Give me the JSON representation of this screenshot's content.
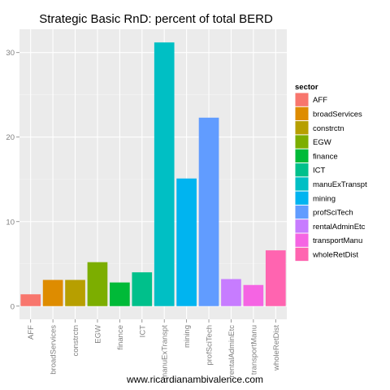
{
  "chart_data": {
    "type": "bar",
    "title": "Strategic Basic RnD: percent of total BERD",
    "xlabel": "",
    "ylabel": "",
    "categories": [
      "AFF",
      "broadServices",
      "constrctn",
      "EGW",
      "finance",
      "ICT",
      "manuExTranspt",
      "mining",
      "profSciTech",
      "rentalAdminEtc",
      "transportManu",
      "wholeRetDist"
    ],
    "values": [
      1.4,
      3.1,
      3.1,
      5.2,
      2.8,
      4.0,
      31.2,
      15.1,
      22.3,
      3.2,
      2.5,
      6.6
    ],
    "colors": [
      "#F8766D",
      "#DE8C00",
      "#B79F00",
      "#7CAE00",
      "#00BA38",
      "#00C08B",
      "#00BFC4",
      "#00B4F0",
      "#619CFF",
      "#C77CFF",
      "#F564E3",
      "#FF64B0"
    ],
    "ylim": [
      -1.56,
      32.76
    ],
    "yticks": [
      0,
      10,
      20,
      30
    ],
    "grid": true,
    "legend": {
      "title": "sector",
      "position": "right",
      "items": [
        "AFF",
        "broadServices",
        "constrctn",
        "EGW",
        "finance",
        "ICT",
        "manuExTranspt",
        "mining",
        "profSciTech",
        "rentalAdminEtc",
        "transportManu",
        "wholeRetDist"
      ]
    }
  },
  "caption": "www.ricardianambivalence.com"
}
